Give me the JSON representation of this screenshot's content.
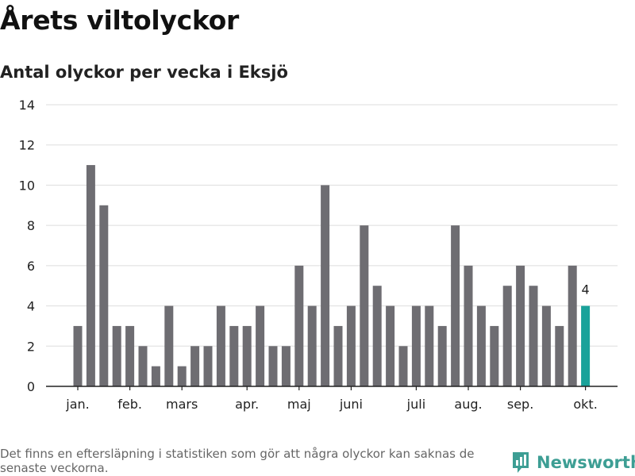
{
  "header": {
    "title": "Årets viltolyckor",
    "subtitle": "Antal olyckor per vecka i Eksjö"
  },
  "footer": {
    "note": "Det finns en eftersläpning i statistiken som gör att några olyckor kan saknas de senaste veckorna.",
    "brand": "Newsworthy",
    "brand_icon": "newsworthy-logo-icon"
  },
  "colors": {
    "bar": "#6e6d72",
    "highlight": "#1aa29a",
    "grid": "#dddddd",
    "axis": "#222222",
    "brand": "#3d9e94"
  },
  "chart_data": {
    "type": "bar",
    "title": "Antal olyckor per vecka i Eksjö",
    "xlabel": "",
    "ylabel": "",
    "ylim": [
      0,
      14
    ],
    "yticks": [
      0,
      2,
      4,
      6,
      8,
      10,
      12,
      14
    ],
    "grid": true,
    "x": [
      1,
      2,
      3,
      4,
      5,
      6,
      7,
      8,
      9,
      10,
      11,
      12,
      13,
      14,
      15,
      16,
      17,
      18,
      19,
      20,
      21,
      22,
      23,
      24,
      25,
      26,
      27,
      28,
      29,
      30,
      31,
      32,
      33,
      34,
      35,
      36,
      37,
      38,
      39,
      40
    ],
    "values": [
      3,
      11,
      9,
      3,
      3,
      2,
      1,
      4,
      1,
      2,
      2,
      4,
      3,
      3,
      4,
      2,
      2,
      6,
      4,
      10,
      3,
      4,
      8,
      5,
      4,
      2,
      4,
      4,
      3,
      8,
      6,
      4,
      3,
      5,
      6,
      5,
      4,
      3,
      6,
      4
    ],
    "highlight_index": 39,
    "highlight_label": "4",
    "month_ticks": [
      {
        "label": "jan.",
        "x": 1
      },
      {
        "label": "feb.",
        "x": 5
      },
      {
        "label": "mars",
        "x": 9
      },
      {
        "label": "apr.",
        "x": 14
      },
      {
        "label": "maj",
        "x": 18
      },
      {
        "label": "juni",
        "x": 22
      },
      {
        "label": "juli",
        "x": 27
      },
      {
        "label": "aug.",
        "x": 31
      },
      {
        "label": "sep.",
        "x": 35
      },
      {
        "label": "okt.",
        "x": 40
      }
    ]
  }
}
